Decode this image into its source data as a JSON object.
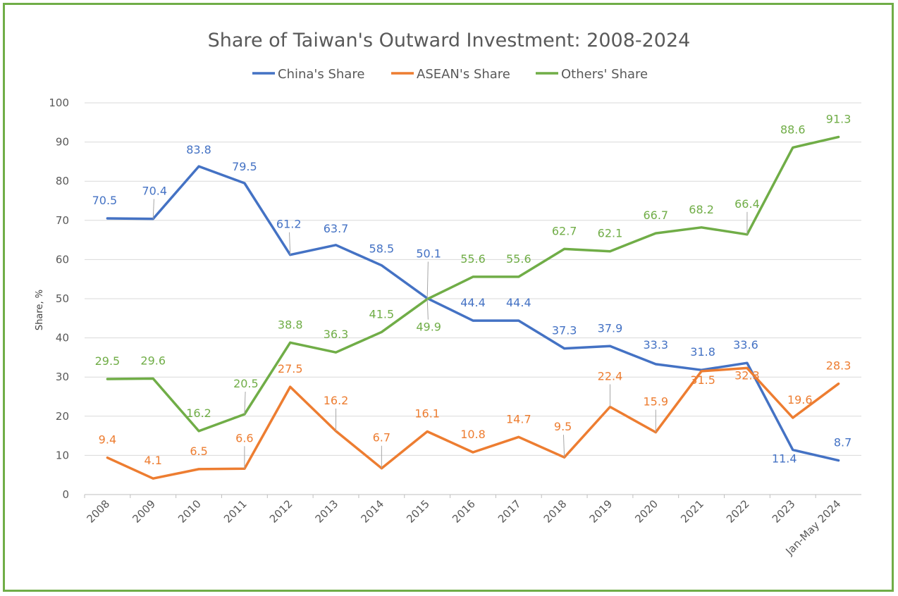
{
  "chart_data": {
    "type": "line",
    "title": "Share of Taiwan's Outward Investment: 2008-2024",
    "xlabel": "",
    "ylabel": "Share, %",
    "ylim": [
      0,
      100
    ],
    "yticks": [
      0,
      10,
      20,
      30,
      40,
      50,
      60,
      70,
      80,
      90,
      100
    ],
    "grid": true,
    "legend_position": "top",
    "categories": [
      "2008",
      "2009",
      "2010",
      "2011",
      "2012",
      "2013",
      "2014",
      "2015",
      "2016",
      "2017",
      "2018",
      "2019",
      "2020",
      "2021",
      "2022",
      "2023",
      "Jan-May 2024"
    ],
    "series": [
      {
        "name": "China's Share",
        "color": "#4472c4",
        "values": [
          70.5,
          70.4,
          83.8,
          79.5,
          61.2,
          63.7,
          58.5,
          50.1,
          44.4,
          44.4,
          37.3,
          37.9,
          33.3,
          31.8,
          33.6,
          11.4,
          8.7
        ],
        "labels": [
          "70.5",
          "70.4",
          "83.8",
          "79.5",
          "61.2",
          "63.7",
          "58.5",
          "50.1",
          "44.4",
          "44.4",
          "37.3",
          "37.9",
          "33.3",
          "31.8",
          "33.6",
          "11.4",
          "8.7"
        ]
      },
      {
        "name": "ASEAN's Share",
        "color": "#ed7d31",
        "values": [
          9.4,
          4.1,
          6.5,
          6.6,
          27.5,
          16.2,
          6.7,
          16.1,
          10.8,
          14.7,
          9.5,
          22.4,
          15.9,
          31.5,
          32.3,
          19.6,
          28.3
        ],
        "labels": [
          "9.4",
          "4.1",
          "6.5",
          "6.6",
          "27.5",
          "16.2",
          "6.7",
          "16.1",
          "10.8",
          "14.7",
          "9.5",
          "22.4",
          "15.9",
          "31.5",
          "32.3",
          "19.6",
          "28.3"
        ]
      },
      {
        "name": "Others' Share",
        "color": "#70ad47",
        "values": [
          29.5,
          29.6,
          16.2,
          20.5,
          38.8,
          36.3,
          41.5,
          49.9,
          55.6,
          55.6,
          62.7,
          62.1,
          66.7,
          68.2,
          66.4,
          88.6,
          91.3
        ],
        "labels": [
          "29.5",
          "29.6",
          "16.2",
          "20.5",
          "38.8",
          "36.3",
          "41.5",
          "49.9",
          "55.6",
          "55.6",
          "62.7",
          "62.1",
          "66.7",
          "68.2",
          "66.4",
          "88.6",
          "91.3"
        ]
      }
    ]
  }
}
